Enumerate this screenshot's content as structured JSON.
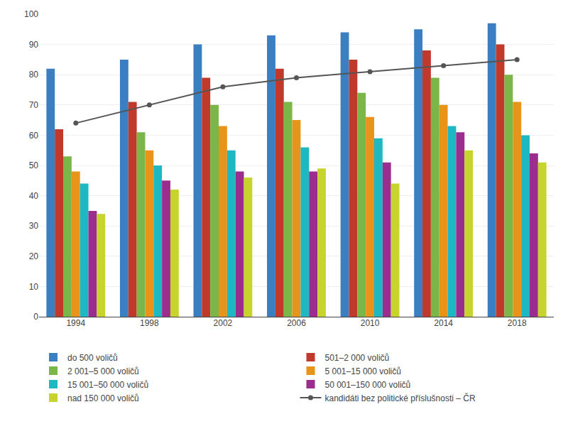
{
  "chart_data": {
    "type": "bar",
    "categories": [
      "1994",
      "1998",
      "2002",
      "2006",
      "2010",
      "2014",
      "2018"
    ],
    "series": [
      {
        "name": "do 500 voličů",
        "color": "#3a7fc1",
        "values": [
          82,
          85,
          90,
          93,
          94,
          95,
          97
        ]
      },
      {
        "name": "501–2 000 voličů",
        "color": "#c0392b",
        "values": [
          62,
          71,
          79,
          82,
          85,
          88,
          90
        ]
      },
      {
        "name": "2 001–5 000 voličů",
        "color": "#7ab648",
        "values": [
          53,
          61,
          70,
          71,
          74,
          79,
          80
        ]
      },
      {
        "name": "5 001–15 000 voličů",
        "color": "#e8941a",
        "values": [
          48,
          55,
          63,
          65,
          66,
          70,
          71
        ]
      },
      {
        "name": "15 001–50 000 voličů",
        "color": "#1eb8c3",
        "values": [
          44,
          50,
          55,
          56,
          59,
          63,
          60
        ]
      },
      {
        "name": "50 001–150 000 voličů",
        "color": "#9b2d8e",
        "values": [
          35,
          45,
          48,
          48,
          51,
          61,
          54
        ]
      },
      {
        "name": "nad 150 000 voličů",
        "color": "#c8d42e",
        "values": [
          34,
          42,
          46,
          49,
          44,
          55,
          51
        ]
      },
      {
        "name": "kandidáti bez politické příslušnosti – ČR",
        "type": "line",
        "color": "#555555",
        "marker": "circle",
        "line_style": "solid",
        "values": [
          64,
          70,
          76,
          79,
          81,
          83,
          85
        ]
      }
    ],
    "ylim": [
      0,
      100
    ],
    "yticks": [
      0,
      10,
      20,
      30,
      40,
      50,
      60,
      70,
      80,
      90,
      100
    ],
    "grid": true,
    "legend": "bottom"
  }
}
